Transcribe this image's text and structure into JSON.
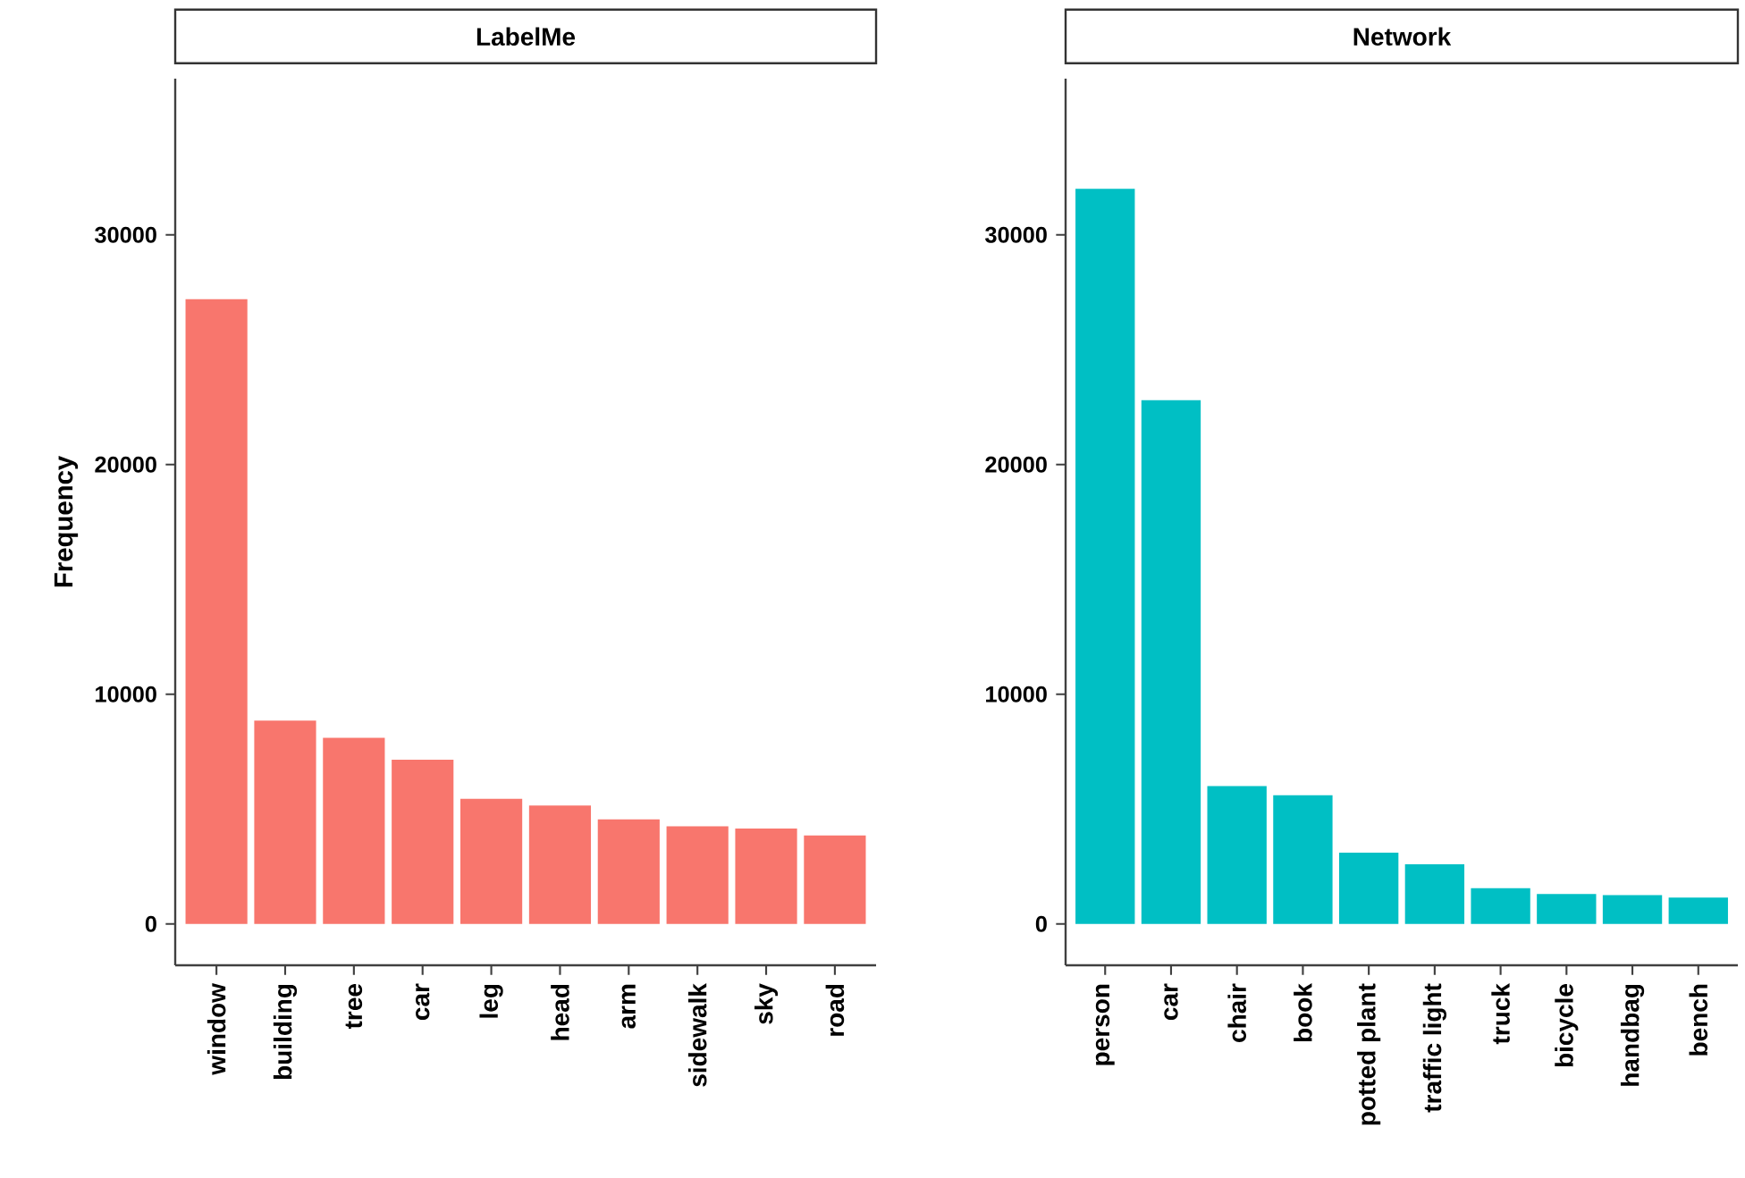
{
  "chart_data": [
    {
      "type": "bar",
      "title": "LabelMe",
      "ylabel": "Frequency",
      "categories": [
        "window",
        "building",
        "tree",
        "car",
        "leg",
        "head",
        "arm",
        "sidewalk",
        "sky",
        "road"
      ],
      "values": [
        27200,
        8850,
        8100,
        7150,
        5450,
        5150,
        4550,
        4250,
        4150,
        3850
      ],
      "color": "#f8766d",
      "ylim": [
        -1800,
        36800
      ],
      "yticks": [
        0,
        10000,
        20000,
        30000
      ]
    },
    {
      "type": "bar",
      "title": "Network",
      "categories": [
        "person",
        "car",
        "chair",
        "book",
        "potted plant",
        "traffic light",
        "truck",
        "bicycle",
        "handbag",
        "bench"
      ],
      "values": [
        32000,
        22800,
        6000,
        5600,
        3100,
        2600,
        1550,
        1300,
        1250,
        1150
      ],
      "color": "#00bfc4",
      "ylim": [
        -1800,
        36800
      ],
      "yticks": [
        0,
        10000,
        20000,
        30000
      ]
    }
  ]
}
